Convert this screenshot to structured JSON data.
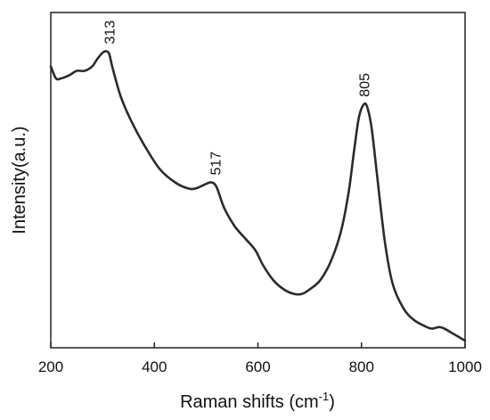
{
  "chart_data": {
    "type": "line",
    "title": "",
    "xlabel": "Raman shifts (cm",
    "xlabel_sup": "-1",
    "xlabel_close": ")",
    "ylabel": "Intensity(a.u.)",
    "xlim": [
      200,
      1000
    ],
    "ylim": [
      0,
      1
    ],
    "xticks": [
      200,
      400,
      600,
      800,
      1000
    ],
    "xtick_labels": [
      "200",
      "400",
      "600",
      "800",
      "1000"
    ],
    "y_ticks_shown": false,
    "grid": false,
    "legend": "none",
    "line_color": "#2b2b2b",
    "series": [
      {
        "x": [
          200,
          210,
          220,
          235,
          250,
          265,
          280,
          290,
          300,
          307,
          313,
          320,
          335,
          355,
          380,
          410,
          440,
          465,
          480,
          500,
          510,
          520,
          535,
          555,
          575,
          595,
          610,
          630,
          650,
          670,
          685,
          700,
          720,
          740,
          760,
          775,
          785,
          795,
          805,
          812,
          820,
          830,
          845,
          860,
          880,
          900,
          920,
          935,
          950,
          960,
          975,
          990,
          1000
        ],
        "y": [
          0.91,
          0.87,
          0.87,
          0.88,
          0.895,
          0.895,
          0.91,
          0.935,
          0.955,
          0.96,
          0.95,
          0.9,
          0.81,
          0.73,
          0.65,
          0.57,
          0.525,
          0.505,
          0.505,
          0.52,
          0.525,
          0.51,
          0.44,
          0.38,
          0.34,
          0.3,
          0.25,
          0.2,
          0.17,
          0.155,
          0.155,
          0.17,
          0.2,
          0.26,
          0.36,
          0.49,
          0.62,
          0.74,
          0.785,
          0.77,
          0.7,
          0.55,
          0.33,
          0.19,
          0.11,
          0.07,
          0.05,
          0.04,
          0.045,
          0.04,
          0.025,
          0.01,
          0.0
        ]
      }
    ],
    "annotations": [
      {
        "text": "313",
        "x": 313,
        "y": 0.96
      },
      {
        "text": "517",
        "x": 517,
        "y": 0.525
      },
      {
        "text": "805",
        "x": 805,
        "y": 0.785
      }
    ]
  }
}
